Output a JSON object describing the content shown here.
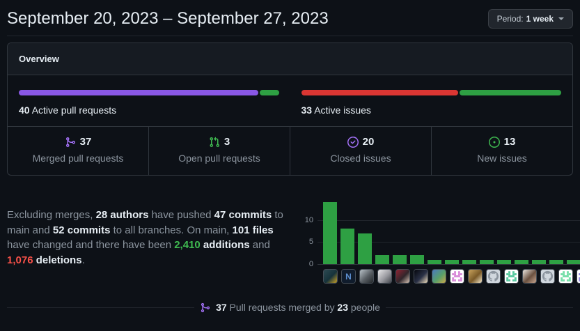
{
  "header": {
    "title": "September 20, 2023 – September 27, 2023",
    "period_label": "Period:",
    "period_value": "1 week"
  },
  "overview": {
    "title": "Overview",
    "pull_requests": {
      "count": "40",
      "label": "Active pull requests",
      "segments": [
        {
          "name": "merged",
          "color": "#8957e5",
          "pct": 92.5
        },
        {
          "name": "open",
          "color": "#2ea043",
          "pct": 7.5
        }
      ]
    },
    "issues": {
      "count": "33",
      "label": "Active issues",
      "segments": [
        {
          "name": "closed",
          "color": "#da3633",
          "pct": 60.6
        },
        {
          "name": "new",
          "color": "#2ea043",
          "pct": 39.4
        }
      ]
    },
    "stats": [
      {
        "icon": "git-merge-icon",
        "icon_color": "#a371f7",
        "value": "37",
        "label": "Merged pull requests"
      },
      {
        "icon": "git-pull-request-icon",
        "icon_color": "#3fb950",
        "value": "3",
        "label": "Open pull requests"
      },
      {
        "icon": "issue-closed-icon",
        "icon_color": "#a371f7",
        "value": "20",
        "label": "Closed issues"
      },
      {
        "icon": "issue-opened-icon",
        "icon_color": "#3fb950",
        "value": "13",
        "label": "New issues"
      }
    ]
  },
  "summary": {
    "segments": [
      {
        "text": "Excluding merges, "
      },
      {
        "text": "28 authors",
        "style": "bold"
      },
      {
        "text": " have pushed "
      },
      {
        "text": "47 commits",
        "style": "bold"
      },
      {
        "text": " to main and "
      },
      {
        "text": "52 commits",
        "style": "bold"
      },
      {
        "text": " to all branches. On main, "
      },
      {
        "text": "101 files",
        "style": "bold"
      },
      {
        "text": " have changed and there have been "
      },
      {
        "text": "2,410",
        "style": "green"
      },
      {
        "text": " "
      },
      {
        "text": "additions",
        "style": "bold"
      },
      {
        "text": " and "
      },
      {
        "text": "1,076",
        "style": "red"
      },
      {
        "text": " "
      },
      {
        "text": "deletions",
        "style": "bold"
      },
      {
        "text": "."
      }
    ]
  },
  "chart_data": {
    "type": "bar",
    "description": "Commits per contributor (top 15 authors, labeled by avatar only)",
    "values": [
      14,
      8,
      7,
      2,
      2,
      2,
      1,
      1,
      1,
      1,
      1,
      1,
      1,
      1,
      1
    ],
    "yticks": [
      0,
      5,
      10
    ],
    "ylim": [
      0,
      15
    ],
    "bar_color": "#2ea043",
    "grid": "horizontal",
    "legend": "none",
    "avatars": [
      {
        "name": "avatar-photo-teal",
        "kind": "photo",
        "colors": [
          "#2d4a52",
          "#16323a",
          "#c9a227"
        ]
      },
      {
        "name": "avatar-letter-n",
        "kind": "letter",
        "bg": "#101c2c",
        "fg": "#5d8fd0",
        "text": "N"
      },
      {
        "name": "avatar-photo-gray",
        "kind": "photo",
        "colors": [
          "#b9c2c9",
          "#565c61",
          "#22262a"
        ]
      },
      {
        "name": "avatar-photo-hood",
        "kind": "photo",
        "colors": [
          "#e8e8ea",
          "#9a9aa0",
          "#41454c"
        ]
      },
      {
        "name": "avatar-photo-woman-red",
        "kind": "photo",
        "colors": [
          "#8f2434",
          "#30262b",
          "#d9c6b6"
        ]
      },
      {
        "name": "avatar-photo-night",
        "kind": "photo",
        "colors": [
          "#05070c",
          "#2a3146",
          "#f0debc"
        ]
      },
      {
        "name": "avatar-photo-hat",
        "kind": "photo",
        "colors": [
          "#4a79c0",
          "#58a06a",
          "#caa84a"
        ]
      },
      {
        "name": "avatar-identicon-pink",
        "kind": "identicon",
        "bg": "#ffffff",
        "fg": "#d88ad8"
      },
      {
        "name": "avatar-photo-gold",
        "kind": "photo",
        "colors": [
          "#caa45e",
          "#7a5a28",
          "#f2e6c8"
        ]
      },
      {
        "name": "avatar-octocat",
        "kind": "octocat",
        "bg": "#d0d7de",
        "fg": "#8c959f"
      },
      {
        "name": "avatar-identicon-teal",
        "kind": "identicon",
        "bg": "#ffffff",
        "fg": "#58c9a0"
      },
      {
        "name": "avatar-photo-woman-white",
        "kind": "photo",
        "colors": [
          "#ece8e2",
          "#6b5140",
          "#c8a690"
        ]
      },
      {
        "name": "avatar-octocat",
        "kind": "octocat",
        "bg": "#d0d7de",
        "fg": "#8c959f"
      },
      {
        "name": "avatar-identicon-green",
        "kind": "identicon",
        "bg": "#ffffff",
        "fg": "#74dfa8"
      },
      {
        "name": "avatar-identicon-purple",
        "kind": "identicon",
        "bg": "#ffffff",
        "fg": "#8f85de"
      }
    ]
  },
  "footer": {
    "icon_color": "#a371f7",
    "segments": [
      {
        "text": "37",
        "style": "bold"
      },
      {
        "text": " Pull requests merged by "
      },
      {
        "text": "23",
        "style": "bold"
      },
      {
        "text": " people"
      }
    ]
  }
}
